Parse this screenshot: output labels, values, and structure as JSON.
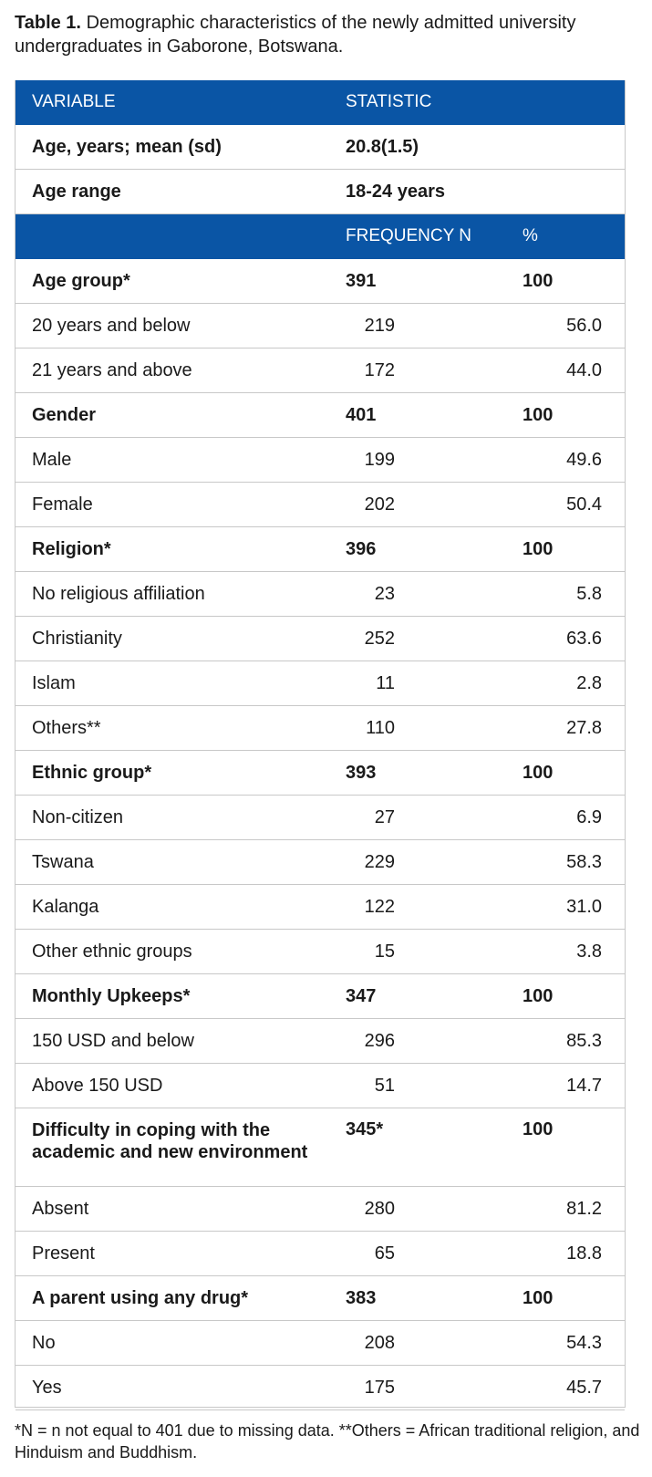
{
  "caption": {
    "label": "Table 1.",
    "text": "Demographic characteristics of the newly admitted university undergraduates in Gaborone, Botswana."
  },
  "header1": {
    "variable": "VARIABLE",
    "statistic": "STATISTIC"
  },
  "age_mean": {
    "label": "Age, years; mean (sd)",
    "value": "20.8(1.5)"
  },
  "age_range": {
    "label": "Age range",
    "value": "18-24 years"
  },
  "header2": {
    "frequency": "FREQUENCY N",
    "percent": "%"
  },
  "rows": [
    {
      "label": "Age group*",
      "n": "391",
      "pct": "100",
      "group": true
    },
    {
      "label": "20 years and below",
      "n": "219",
      "pct": "56.0"
    },
    {
      "label": "21 years and above",
      "n": "172",
      "pct": "44.0"
    },
    {
      "label": "Gender",
      "n": "401",
      "pct": "100",
      "group": true
    },
    {
      "label": "Male",
      "n": "199",
      "pct": "49.6"
    },
    {
      "label": "Female",
      "n": "202",
      "pct": "50.4"
    },
    {
      "label": "Religion*",
      "n": "396",
      "pct": "100",
      "group": true
    },
    {
      "label": "No religious affiliation",
      "n": "23",
      "pct": "5.8"
    },
    {
      "label": "Christianity",
      "n": "252",
      "pct": "63.6"
    },
    {
      "label": "Islam",
      "n": "11",
      "pct": "2.8"
    },
    {
      "label": "Others**",
      "n": "110",
      "pct": "27.8"
    },
    {
      "label": "Ethnic group*",
      "n": "393",
      "pct": "100",
      "group": true
    },
    {
      "label": "Non-citizen",
      "n": "27",
      "pct": "6.9"
    },
    {
      "label": "Tswana",
      "n": "229",
      "pct": "58.3"
    },
    {
      "label": "Kalanga",
      "n": "122",
      "pct": "31.0"
    },
    {
      "label": "Other ethnic groups",
      "n": "15",
      "pct": "3.8"
    },
    {
      "label": "Monthly Upkeeps*",
      "n": "347",
      "pct": "100",
      "group": true
    },
    {
      "label": "150 USD and below",
      "n": "296",
      "pct": "85.3"
    },
    {
      "label": "Above 150 USD",
      "n": "51",
      "pct": "14.7"
    },
    {
      "label": "Difficulty in coping with the academic and new environment",
      "n": "345*",
      "pct": "100",
      "group": true,
      "tall": true
    },
    {
      "label": "Absent",
      "n": "280",
      "pct": "81.2"
    },
    {
      "label": "Present",
      "n": "65",
      "pct": "18.8"
    },
    {
      "label": "A parent using any drug*",
      "n": "383",
      "pct": "100",
      "group": true
    },
    {
      "label": "No",
      "n": "208",
      "pct": "54.3"
    },
    {
      "label": "Yes",
      "n": "175",
      "pct": "45.7"
    }
  ],
  "footnote": "*N = n not equal to 401 due to missing data. **Others = African traditional religion, and Hinduism and Buddhism."
}
